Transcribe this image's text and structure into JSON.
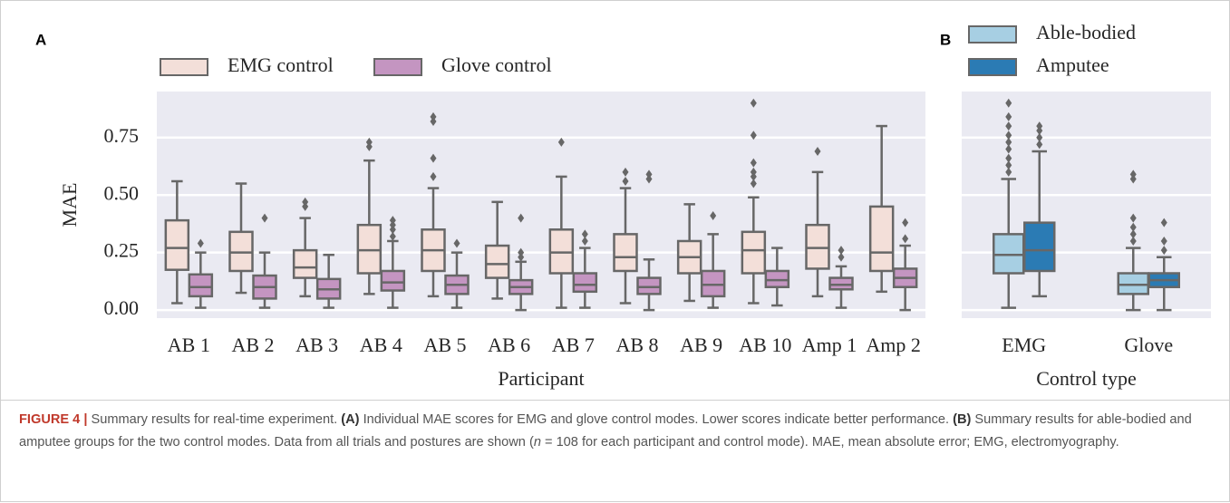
{
  "chart_data": [
    {
      "type": "box",
      "panel_label": "A",
      "ylabel": "MAE",
      "xlabel": "Participant",
      "categories": [
        "AB 1",
        "AB 2",
        "AB 3",
        "AB 4",
        "AB 5",
        "AB 6",
        "AB 7",
        "AB 8",
        "AB 9",
        "AB 10",
        "Amp 1",
        "Amp 2"
      ],
      "ylim": [
        -0.035,
        0.95
      ],
      "yticks": [
        {
          "value": 0,
          "label": "0.00"
        },
        {
          "value": 0.25,
          "label": "0.25"
        },
        {
          "value": 0.5,
          "label": "0.50"
        },
        {
          "value": 0.75,
          "label": "0.75"
        }
      ],
      "grid": true,
      "legend": "top-left",
      "series": [
        {
          "name": "EMG control",
          "color": "#f3dfd9",
          "boxes": [
            {
              "low": 0.03,
              "q1": 0.175,
              "median": 0.27,
              "q3": 0.39,
              "high": 0.56,
              "outliers": []
            },
            {
              "low": 0.075,
              "q1": 0.17,
              "median": 0.25,
              "q3": 0.34,
              "high": 0.55,
              "outliers": []
            },
            {
              "low": 0.06,
              "q1": 0.14,
              "median": 0.185,
              "q3": 0.26,
              "high": 0.4,
              "outliers": [
                0.45,
                0.47
              ]
            },
            {
              "low": 0.07,
              "q1": 0.16,
              "median": 0.26,
              "q3": 0.37,
              "high": 0.65,
              "outliers": [
                0.71,
                0.73
              ]
            },
            {
              "low": 0.06,
              "q1": 0.17,
              "median": 0.26,
              "q3": 0.35,
              "high": 0.53,
              "outliers": [
                0.58,
                0.66,
                0.82,
                0.84
              ]
            },
            {
              "low": 0.05,
              "q1": 0.14,
              "median": 0.2,
              "q3": 0.28,
              "high": 0.47,
              "outliers": []
            },
            {
              "low": 0.01,
              "q1": 0.16,
              "median": 0.25,
              "q3": 0.35,
              "high": 0.58,
              "outliers": [
                0.73
              ]
            },
            {
              "low": 0.03,
              "q1": 0.17,
              "median": 0.23,
              "q3": 0.33,
              "high": 0.53,
              "outliers": [
                0.56,
                0.6
              ]
            },
            {
              "low": 0.04,
              "q1": 0.16,
              "median": 0.23,
              "q3": 0.3,
              "high": 0.46,
              "outliers": []
            },
            {
              "low": 0.03,
              "q1": 0.16,
              "median": 0.26,
              "q3": 0.34,
              "high": 0.49,
              "outliers": [
                0.55,
                0.58,
                0.6,
                0.64,
                0.76,
                0.9
              ]
            },
            {
              "low": 0.06,
              "q1": 0.18,
              "median": 0.27,
              "q3": 0.37,
              "high": 0.6,
              "outliers": [
                0.69
              ]
            },
            {
              "low": 0.08,
              "q1": 0.17,
              "median": 0.25,
              "q3": 0.45,
              "high": 0.8,
              "outliers": []
            }
          ]
        },
        {
          "name": "Glove control",
          "color": "#c495c1",
          "boxes": [
            {
              "low": 0.01,
              "q1": 0.06,
              "median": 0.1,
              "q3": 0.155,
              "high": 0.25,
              "outliers": [
                0.29
              ]
            },
            {
              "low": 0.01,
              "q1": 0.05,
              "median": 0.1,
              "q3": 0.15,
              "high": 0.25,
              "outliers": [
                0.4
              ]
            },
            {
              "low": 0.01,
              "q1": 0.05,
              "median": 0.09,
              "q3": 0.135,
              "high": 0.24,
              "outliers": []
            },
            {
              "low": 0.01,
              "q1": 0.085,
              "median": 0.12,
              "q3": 0.17,
              "high": 0.3,
              "outliers": [
                0.32,
                0.35,
                0.37,
                0.39
              ]
            },
            {
              "low": 0.01,
              "q1": 0.07,
              "median": 0.11,
              "q3": 0.15,
              "high": 0.25,
              "outliers": [
                0.29
              ]
            },
            {
              "low": 0.0,
              "q1": 0.07,
              "median": 0.1,
              "q3": 0.13,
              "high": 0.21,
              "outliers": [
                0.23,
                0.25,
                0.4
              ]
            },
            {
              "low": 0.01,
              "q1": 0.08,
              "median": 0.11,
              "q3": 0.16,
              "high": 0.27,
              "outliers": [
                0.3,
                0.33
              ]
            },
            {
              "low": 0.0,
              "q1": 0.07,
              "median": 0.1,
              "q3": 0.14,
              "high": 0.22,
              "outliers": [
                0.57,
                0.59
              ]
            },
            {
              "low": 0.01,
              "q1": 0.06,
              "median": 0.11,
              "q3": 0.17,
              "high": 0.33,
              "outliers": [
                0.41
              ]
            },
            {
              "low": 0.02,
              "q1": 0.1,
              "median": 0.13,
              "q3": 0.17,
              "high": 0.27,
              "outliers": []
            },
            {
              "low": 0.01,
              "q1": 0.09,
              "median": 0.11,
              "q3": 0.14,
              "high": 0.19,
              "outliers": [
                0.23,
                0.26
              ]
            },
            {
              "low": 0.0,
              "q1": 0.1,
              "median": 0.14,
              "q3": 0.18,
              "high": 0.28,
              "outliers": [
                0.31,
                0.38
              ]
            }
          ]
        }
      ]
    },
    {
      "type": "box",
      "panel_label": "B",
      "xlabel": "Control type",
      "categories": [
        "EMG",
        "Glove"
      ],
      "ylim": [
        -0.035,
        0.95
      ],
      "yticks": [
        0,
        0.25,
        0.5,
        0.75
      ],
      "sharey": true,
      "grid": true,
      "legend": "top-right",
      "series": [
        {
          "name": "Able-bodied",
          "color": "#a7cfe3",
          "boxes": [
            {
              "low": 0.01,
              "q1": 0.16,
              "median": 0.24,
              "q3": 0.33,
              "high": 0.57,
              "outliers": [
                0.6,
                0.63,
                0.66,
                0.7,
                0.73,
                0.76,
                0.8,
                0.84,
                0.9
              ]
            },
            {
              "low": 0.0,
              "q1": 0.07,
              "median": 0.11,
              "q3": 0.16,
              "high": 0.27,
              "outliers": [
                0.3,
                0.33,
                0.36,
                0.4,
                0.57,
                0.59
              ]
            }
          ]
        },
        {
          "name": "Amputee",
          "color": "#2b7bb4",
          "boxes": [
            {
              "low": 0.06,
              "q1": 0.17,
              "median": 0.26,
              "q3": 0.38,
              "high": 0.69,
              "outliers": [
                0.72,
                0.75,
                0.78,
                0.8
              ]
            },
            {
              "low": 0.0,
              "q1": 0.1,
              "median": 0.13,
              "q3": 0.16,
              "high": 0.23,
              "outliers": [
                0.26,
                0.3,
                0.38
              ]
            }
          ]
        }
      ]
    }
  ],
  "caption": [
    "FIGURE 4 |",
    " Summary results for real-time experiment. ",
    "(A)",
    " Individual MAE scores for EMG and glove control modes. Lower scores indicate better performance. ",
    "(B)",
    " Summary results for able-bodied and amputee groups for the two control modes. Data from all trials and postures are shown (",
    "n",
    " = 108 for each participant and control mode). MAE, mean absolute error; EMG, electromyography."
  ]
}
